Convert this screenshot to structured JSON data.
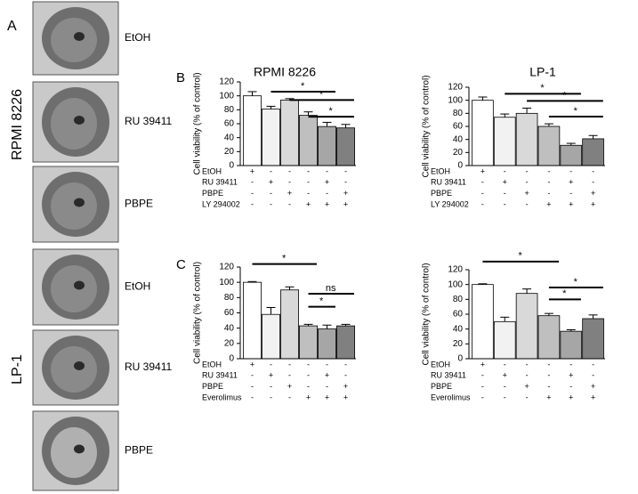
{
  "panels": [
    "A",
    "B",
    "C"
  ],
  "cell_lines": [
    "RPMI 8226",
    "LP-1"
  ],
  "images": [
    {
      "label": "EtOH"
    },
    {
      "label": "RU 39411"
    },
    {
      "label": "PBPE"
    },
    {
      "label": "EtOH"
    },
    {
      "label": "RU 39411"
    },
    {
      "label": "PBPE"
    }
  ],
  "chart_data": [
    {
      "type": "bar",
      "title": "RPMI 8226",
      "y_label": "Cell viability (% of control)",
      "values": [
        100,
        81,
        94,
        72,
        56,
        54
      ],
      "errors": [
        6,
        4,
        2,
        5,
        6,
        5
      ],
      "colors": [
        "#ffffff",
        "#f2f2f2",
        "#d9d9d9",
        "#bfbfbf",
        "#a6a6a6",
        "#808080"
      ],
      "ylim": [
        0,
        120
      ],
      "yticks": [
        0,
        20,
        40,
        60,
        80,
        100,
        120
      ],
      "treatments": [
        {
          "name": "EtOH",
          "signs": [
            "+",
            "-",
            "-",
            "-",
            "-",
            "-"
          ]
        },
        {
          "name": "RU 39411",
          "signs": [
            "-",
            "+",
            "-",
            "-",
            "+",
            "-"
          ]
        },
        {
          "name": "PBPE",
          "signs": [
            "-",
            "-",
            "+",
            "-",
            "-",
            "+"
          ]
        },
        {
          "name": "LY 294002",
          "signs": [
            "-",
            "-",
            "-",
            "+",
            "+",
            "+"
          ]
        }
      ],
      "annotations": [
        {
          "text": "*",
          "from": 1,
          "to": 4,
          "level": 106
        },
        {
          "text": "*",
          "from": 2,
          "to": 5,
          "level": 94
        },
        {
          "text": "*",
          "from": 3,
          "to": 5,
          "level": 70
        }
      ]
    },
    {
      "type": "bar",
      "title": "LP-1",
      "y_label": "Cell viability (% of control)",
      "values": [
        100,
        74,
        80,
        60,
        31,
        41
      ],
      "errors": [
        5,
        5,
        8,
        4,
        3,
        5
      ],
      "colors": [
        "#ffffff",
        "#f2f2f2",
        "#d9d9d9",
        "#bfbfbf",
        "#a6a6a6",
        "#808080"
      ],
      "ylim": [
        0,
        120
      ],
      "yticks": [
        0,
        20,
        40,
        60,
        80,
        100,
        120
      ],
      "treatments": [
        {
          "name": "EtOH",
          "signs": [
            "+",
            "-",
            "-",
            "-",
            "-",
            "-"
          ]
        },
        {
          "name": "RU 39411",
          "signs": [
            "-",
            "+",
            "-",
            "-",
            "+",
            "-"
          ]
        },
        {
          "name": "PBPE",
          "signs": [
            "-",
            "-",
            "+",
            "-",
            "-",
            "+"
          ]
        },
        {
          "name": "LY 294002",
          "signs": [
            "-",
            "-",
            "-",
            "+",
            "+",
            "+"
          ]
        }
      ],
      "annotations": [
        {
          "text": "*",
          "from": 1,
          "to": 4,
          "level": 110
        },
        {
          "text": "*",
          "from": 2,
          "to": 5,
          "level": 99
        },
        {
          "text": "*",
          "from": 3,
          "to": 5,
          "level": 75
        }
      ]
    },
    {
      "type": "bar",
      "y_label": "Cell viability (% of control)",
      "values": [
        100,
        58,
        90,
        43,
        39,
        43
      ],
      "errors": [
        1,
        9,
        4,
        2,
        5,
        2
      ],
      "colors": [
        "#ffffff",
        "#f2f2f2",
        "#d9d9d9",
        "#bfbfbf",
        "#a6a6a6",
        "#808080"
      ],
      "ylim": [
        0,
        120
      ],
      "yticks": [
        0,
        20,
        40,
        60,
        80,
        100,
        120
      ],
      "treatments": [
        {
          "name": "EtOH",
          "signs": [
            "+",
            "-",
            "-",
            "-",
            "-",
            "-"
          ]
        },
        {
          "name": "RU 39411",
          "signs": [
            "-",
            "+",
            "-",
            "-",
            "+",
            "-"
          ]
        },
        {
          "name": "PBPE",
          "signs": [
            "-",
            "-",
            "+",
            "-",
            "-",
            "+"
          ]
        },
        {
          "name": "Everolimus",
          "signs": [
            "-",
            "-",
            "-",
            "+",
            "+",
            "+"
          ]
        }
      ],
      "annotations": [
        {
          "text": "*",
          "from": 0,
          "to": 3,
          "level": 124
        },
        {
          "text": "ns",
          "from": 3,
          "to": 5,
          "level": 85
        },
        {
          "text": "*",
          "from": 3,
          "to": 4,
          "level": 68
        }
      ]
    },
    {
      "type": "bar",
      "y_label": "Cell viability (% of control)",
      "values": [
        100,
        50,
        88,
        58,
        37,
        54
      ],
      "errors": [
        1,
        6,
        6,
        3,
        2,
        5
      ],
      "colors": [
        "#ffffff",
        "#f2f2f2",
        "#d9d9d9",
        "#bfbfbf",
        "#a6a6a6",
        "#808080"
      ],
      "ylim": [
        0,
        120
      ],
      "yticks": [
        0,
        20,
        40,
        60,
        80,
        100,
        120
      ],
      "treatments": [
        {
          "name": "EtOH",
          "signs": [
            "+",
            "-",
            "-",
            "-",
            "-",
            "-"
          ]
        },
        {
          "name": "RU 39411",
          "signs": [
            "-",
            "+",
            "-",
            "-",
            "+",
            "-"
          ]
        },
        {
          "name": "PBPE",
          "signs": [
            "-",
            "-",
            "+",
            "-",
            "-",
            "+"
          ]
        },
        {
          "name": "Everolimus",
          "signs": [
            "-",
            "-",
            "-",
            "+",
            "+",
            "+"
          ]
        }
      ],
      "annotations": [
        {
          "text": "*",
          "from": 0,
          "to": 3,
          "level": 131
        },
        {
          "text": "*",
          "from": 3,
          "to": 5,
          "level": 96
        },
        {
          "text": "*",
          "from": 3,
          "to": 4,
          "level": 80
        }
      ]
    }
  ]
}
